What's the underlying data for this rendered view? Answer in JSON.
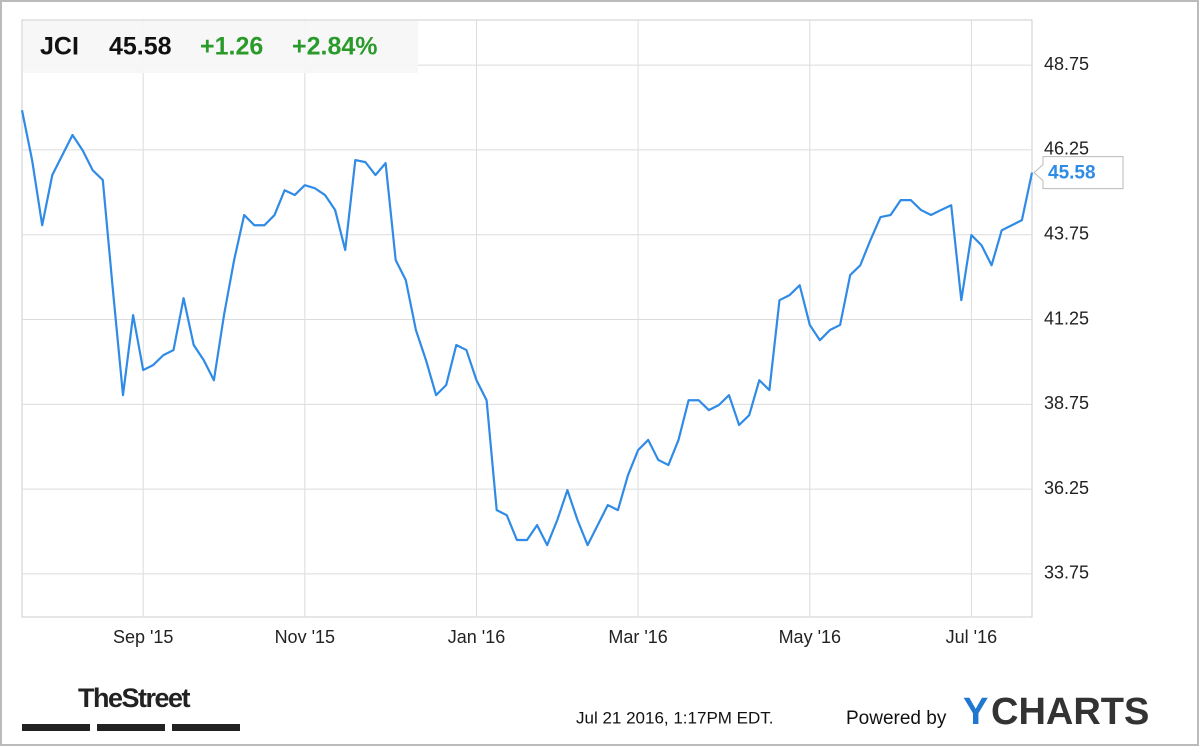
{
  "header": {
    "ticker": "JCI",
    "price": "45.58",
    "change": "+1.26",
    "change_pct": "+2.84%"
  },
  "chart_data": {
    "type": "line",
    "color": "#2f8be6",
    "grid": true,
    "categories": [
      null,
      null,
      null,
      null,
      null,
      null,
      null,
      null,
      null,
      null,
      null,
      null,
      "Sep '15",
      null,
      null,
      null,
      null,
      null,
      null,
      null,
      null,
      null,
      null,
      null,
      null,
      null,
      null,
      null,
      "Nov '15",
      null,
      null,
      null,
      null,
      null,
      null,
      null,
      null,
      null,
      null,
      null,
      null,
      null,
      null,
      null,
      null,
      "Jan '16",
      null,
      null,
      null,
      null,
      null,
      null,
      null,
      null,
      null,
      null,
      null,
      null,
      null,
      null,
      null,
      "Mar '16",
      null,
      null,
      null,
      null,
      null,
      null,
      null,
      null,
      null,
      null,
      null,
      null,
      null,
      null,
      null,
      null,
      "May '16",
      null,
      null,
      null,
      null,
      null,
      null,
      null,
      null,
      null,
      null,
      null,
      null,
      null,
      null,
      null,
      "Jul '16",
      null,
      null,
      null,
      null,
      null,
      null
    ],
    "values": [
      47.42,
      45.95,
      44.03,
      45.51,
      46.1,
      46.69,
      46.24,
      45.65,
      45.36,
      42.12,
      39.02,
      41.38,
      39.76,
      39.91,
      40.2,
      40.35,
      41.88,
      40.5,
      40.05,
      39.46,
      41.38,
      43.0,
      44.33,
      44.03,
      44.03,
      44.33,
      45.06,
      44.92,
      45.21,
      45.12,
      44.92,
      44.48,
      43.3,
      45.95,
      45.89,
      45.51,
      45.86,
      43.0,
      42.41,
      40.94,
      40.05,
      39.02,
      39.32,
      40.5,
      40.35,
      39.46,
      38.87,
      35.63,
      35.48,
      34.75,
      34.75,
      35.19,
      34.6,
      35.34,
      36.22,
      35.34,
      34.6,
      35.19,
      35.78,
      35.63,
      36.66,
      37.4,
      37.7,
      37.11,
      36.96,
      37.7,
      38.87,
      38.87,
      38.58,
      38.73,
      39.02,
      38.14,
      38.43,
      39.46,
      39.17,
      41.82,
      41.97,
      42.26,
      41.09,
      40.64,
      40.94,
      41.09,
      42.56,
      42.85,
      43.59,
      44.27,
      44.33,
      44.77,
      44.77,
      44.48,
      44.33,
      44.48,
      44.62,
      41.82,
      43.74,
      43.44,
      42.85,
      43.88,
      44.03,
      44.18,
      45.58
    ],
    "ylim": [
      32.48,
      50.08
    ],
    "yticks": [
      33.75,
      36.25,
      38.75,
      41.25,
      43.75,
      46.25,
      48.75
    ]
  },
  "footer": {
    "brand": "TheStreet",
    "timestamp": "Jul 21 2016, 1:17PM EDT.",
    "powered": "Powered by",
    "logo_y": "Y",
    "logo_rest": "CHARTS"
  }
}
